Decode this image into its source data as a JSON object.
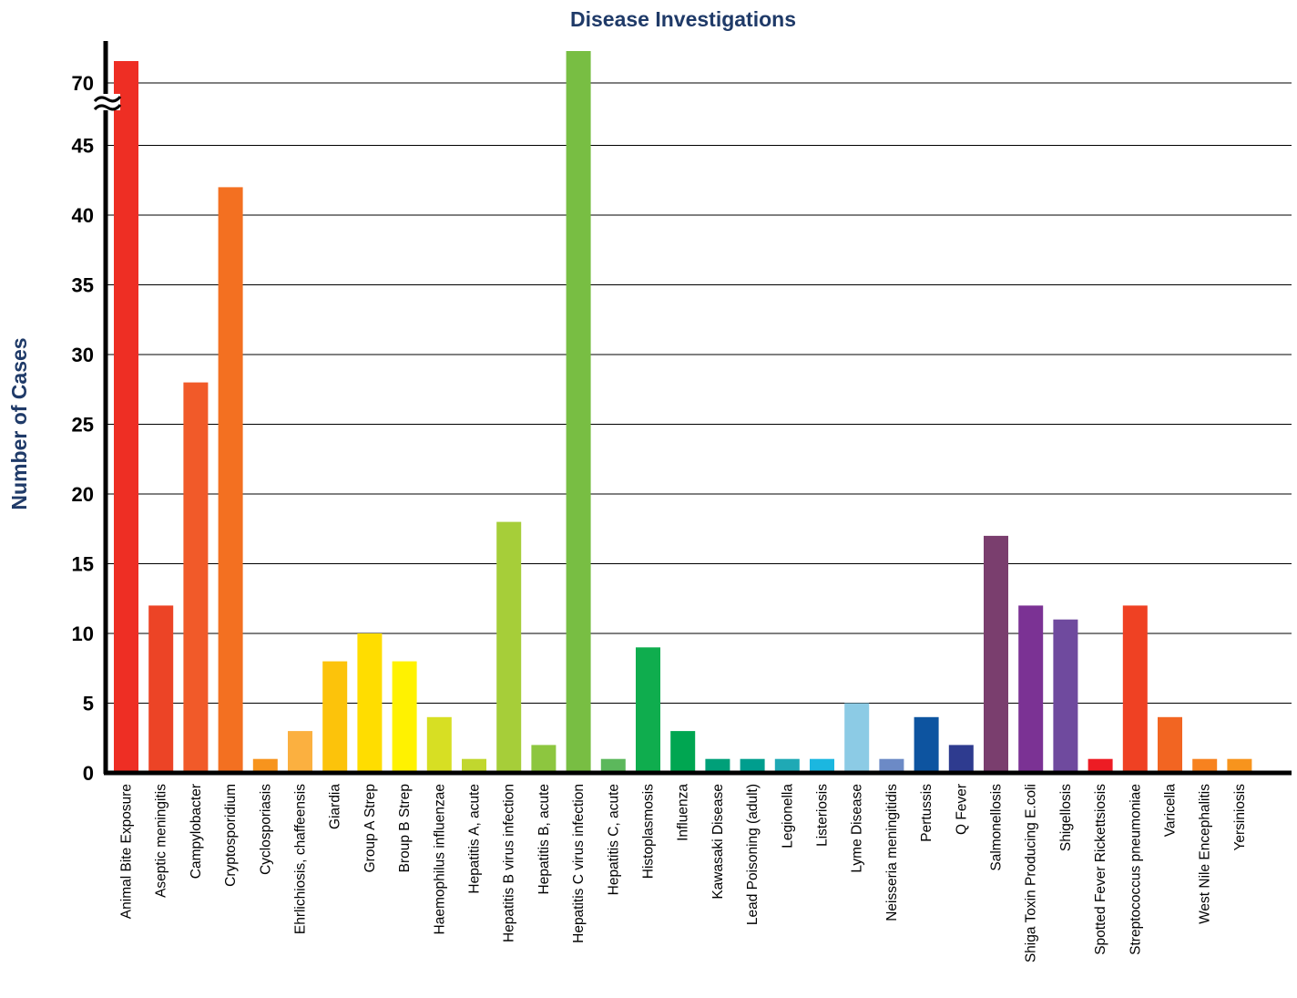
{
  "chart_data": {
    "type": "bar",
    "title": "Disease Investigations",
    "xlabel": "",
    "ylabel": "Number of Cases",
    "axis_break": {
      "below": 45,
      "resumes_at": 70
    },
    "yticks": [
      0,
      5,
      10,
      15,
      20,
      25,
      30,
      35,
      40,
      45,
      70
    ],
    "ytick_labels": [
      "0",
      "5",
      "10",
      "15",
      "20",
      "25",
      "30",
      "35",
      "40",
      "45",
      "70"
    ],
    "grid": true,
    "categories": [
      "Animal Bite Exposure",
      "Aseptic meningitis",
      "Campylobacter",
      "Cryptosporidium",
      "Cyclosporiasis",
      "Ehrlichiosis, chaffeensis",
      "Giardia",
      "Group A Strep",
      "Broup B Strep",
      "Haemophilus influenzae",
      "Hepatitis A, acute",
      "Hepatitis B virus infection",
      "Hepatitis B, acute",
      "Hepatitis C virus infection",
      "Hepatitis C, acute",
      "Histoplasmosis",
      "Influenza",
      "Kawasaki Disease",
      "Lead Poisoning (adult)",
      "Legionella",
      "Listeriosis",
      "Lyme Disease",
      "Neisseria meningitidis",
      "Pertussis",
      "Q Fever",
      "Salmonellosis",
      "Shiga Toxin Producing E.coli",
      "Shigellosis",
      "Spotted Fever Rickettsiosis",
      "Streptococcus pneumoniae",
      "Varicella",
      "West Nile Encephalitis",
      "Yersiniosis"
    ],
    "values": [
      72,
      12,
      28,
      42,
      1,
      3,
      8,
      10,
      8,
      4,
      1,
      18,
      2,
      74,
      1,
      9,
      3,
      1,
      1,
      1,
      1,
      5,
      1,
      4,
      2,
      17,
      12,
      11,
      1,
      12,
      4,
      1,
      1
    ],
    "colors": [
      "#ee2e24",
      "#ec4426",
      "#f15a29",
      "#f37021",
      "#f7941d",
      "#fbb040",
      "#fcc30b",
      "#ffdd00",
      "#fff200",
      "#d7df23",
      "#c1d72e",
      "#a6ce39",
      "#8dc63f",
      "#78be43",
      "#5cb85c",
      "#0fad4e",
      "#00a651",
      "#00a079",
      "#009e8e",
      "#1fa9b5",
      "#1bb7e0",
      "#8ccbe5",
      "#6c8ac6",
      "#0d54a0",
      "#2e3b8f",
      "#7a3e6e",
      "#7b3294",
      "#6f4a9e",
      "#ed1c24",
      "#ef4123",
      "#f26522",
      "#f7821f",
      "#f7941d"
    ]
  }
}
